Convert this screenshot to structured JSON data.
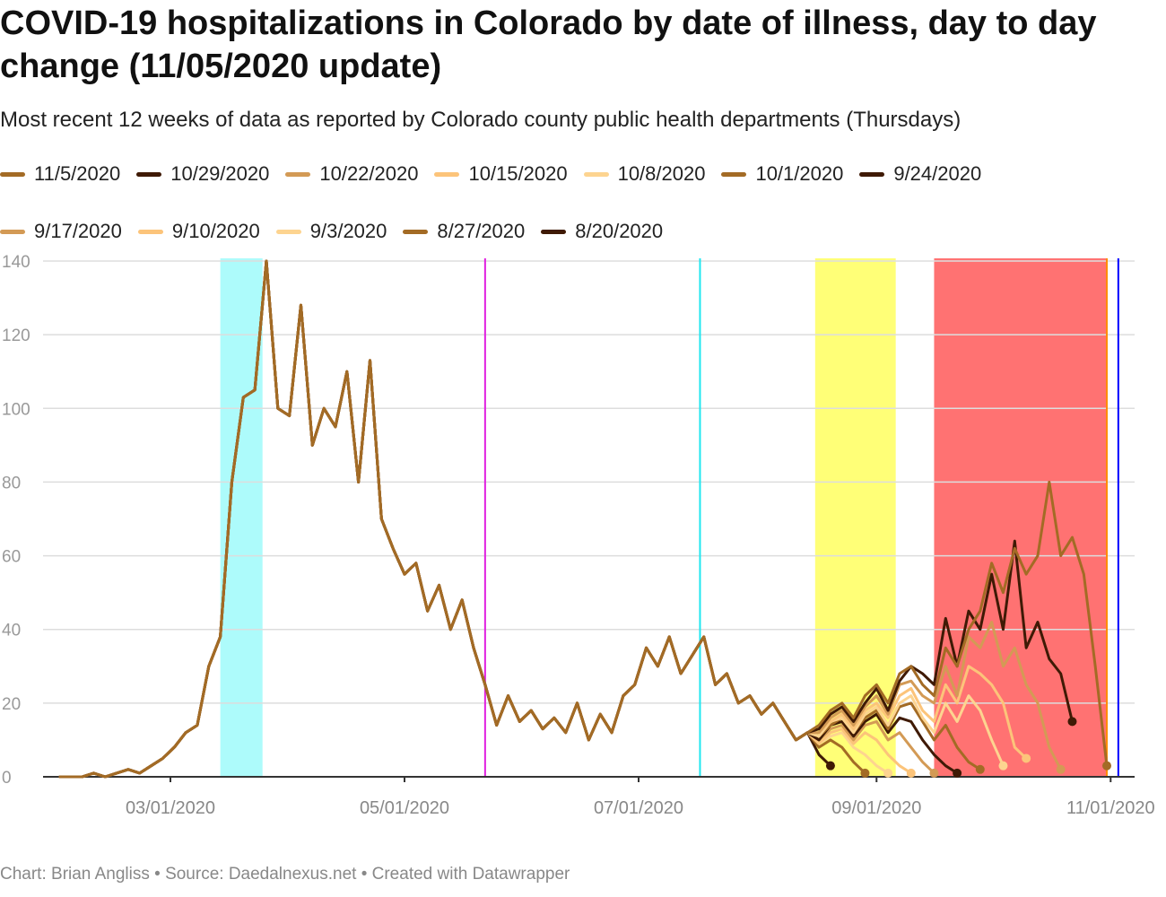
{
  "title": "COVID-19 hospitalizations in Colorado by date of illness, day to day change (11/05/2020 update)",
  "subtitle": "Most recent 12 weeks of data as reported by Colorado county public health departments (Thursdays)",
  "footer": "Chart: Brian Angliss • Source: Daedalnexus.net • Created with Datawrapper",
  "chart_data": {
    "type": "line",
    "xlabel": "",
    "ylabel": "",
    "ylim": [
      0,
      140
    ],
    "yticks": [
      "0",
      "20",
      "40",
      "60",
      "80",
      "100",
      "120",
      "140"
    ],
    "xticks": [
      {
        "date": "2020-03-01",
        "label": "03/01/2020"
      },
      {
        "date": "2020-05-01",
        "label": "05/01/2020"
      },
      {
        "date": "2020-07-01",
        "label": "07/01/2020"
      },
      {
        "date": "2020-09-01",
        "label": "09/01/2020"
      },
      {
        "date": "2020-11-01",
        "label": "11/01/2020"
      }
    ],
    "xrange": [
      "2020-01-28",
      "2020-11-08"
    ],
    "step_days": 3,
    "history_start": "2020-02-01",
    "history": [
      0,
      0,
      0,
      1,
      0,
      1,
      2,
      1,
      3,
      5,
      8,
      12,
      14,
      30,
      38,
      80,
      103,
      105,
      140,
      100,
      98,
      128,
      90,
      100,
      95,
      110,
      80,
      113,
      70,
      62,
      55,
      58,
      45,
      52,
      40,
      48,
      35,
      25,
      14,
      22,
      15,
      18,
      13,
      16,
      12,
      20,
      10,
      17,
      12,
      22,
      25,
      35,
      30,
      38,
      28,
      33,
      38,
      25,
      28,
      20,
      22,
      17,
      20,
      15,
      10,
      12
    ],
    "tail_start": "2020-08-17",
    "series": [
      {
        "name": "11/5/2020",
        "color": "#a36b25",
        "tail": [
          14,
          18,
          20,
          16,
          22,
          25,
          20,
          28,
          30,
          25,
          22,
          35,
          30,
          40,
          45,
          58,
          50,
          62,
          55,
          60,
          80,
          60,
          65,
          55,
          30,
          3
        ]
      },
      {
        "name": "10/29/2020",
        "color": "#3f1a05",
        "tail": [
          13,
          17,
          19,
          15,
          20,
          24,
          18,
          26,
          30,
          28,
          25,
          43,
          30,
          45,
          40,
          55,
          40,
          64,
          35,
          42,
          32,
          28,
          15
        ]
      },
      {
        "name": "10/22/2020",
        "color": "#d39a55",
        "tail": [
          12,
          16,
          18,
          14,
          19,
          22,
          17,
          25,
          26,
          22,
          20,
          30,
          22,
          38,
          35,
          42,
          30,
          35,
          25,
          20,
          8,
          2
        ]
      },
      {
        "name": "10/15/2020",
        "color": "#fcc47a",
        "tail": [
          12,
          15,
          17,
          13,
          18,
          20,
          16,
          22,
          24,
          18,
          15,
          25,
          20,
          30,
          28,
          25,
          20,
          8,
          5
        ]
      },
      {
        "name": "10/8/2020",
        "color": "#fdd490",
        "tail": [
          11,
          15,
          16,
          12,
          17,
          19,
          14,
          20,
          22,
          16,
          12,
          20,
          15,
          22,
          18,
          10,
          3
        ]
      },
      {
        "name": "10/1/2020",
        "color": "#a36b25",
        "tail": [
          11,
          14,
          16,
          12,
          16,
          18,
          13,
          19,
          20,
          15,
          10,
          14,
          8,
          4,
          2
        ]
      },
      {
        "name": "9/24/2020",
        "color": "#3f1a05",
        "tail": [
          10,
          14,
          15,
          11,
          15,
          17,
          12,
          16,
          15,
          10,
          6,
          3,
          1
        ]
      },
      {
        "name": "9/17/2020",
        "color": "#d39a55",
        "tail": [
          10,
          13,
          14,
          10,
          14,
          15,
          10,
          12,
          8,
          4,
          1
        ]
      },
      {
        "name": "9/10/2020",
        "color": "#fcc47a",
        "tail": [
          9,
          12,
          13,
          9,
          12,
          10,
          6,
          3,
          1
        ]
      },
      {
        "name": "9/3/2020",
        "color": "#fdd490",
        "tail": [
          9,
          11,
          12,
          8,
          6,
          3,
          1
        ]
      },
      {
        "name": "8/27/2020",
        "color": "#a36b25",
        "tail": [
          8,
          10,
          8,
          4,
          1
        ]
      },
      {
        "name": "8/20/2020",
        "color": "#3f1a05",
        "tail": [
          6,
          3
        ]
      }
    ],
    "bands": [
      {
        "from": "2020-03-14",
        "to": "2020-03-25",
        "color": "#adfbfb"
      },
      {
        "from": "2020-08-16",
        "to": "2020-09-06",
        "color": "#ffff77"
      },
      {
        "from": "2020-09-16",
        "to": "2020-10-31",
        "color": "#ff7272"
      }
    ],
    "vlines": [
      {
        "date": "2020-05-22",
        "color": "#e01ee0"
      },
      {
        "date": "2020-07-17",
        "color": "#1fe6f0"
      },
      {
        "date": "2020-10-31",
        "color": "#ff8c00"
      },
      {
        "date": "2020-11-03",
        "color": "#0000ff"
      }
    ]
  }
}
